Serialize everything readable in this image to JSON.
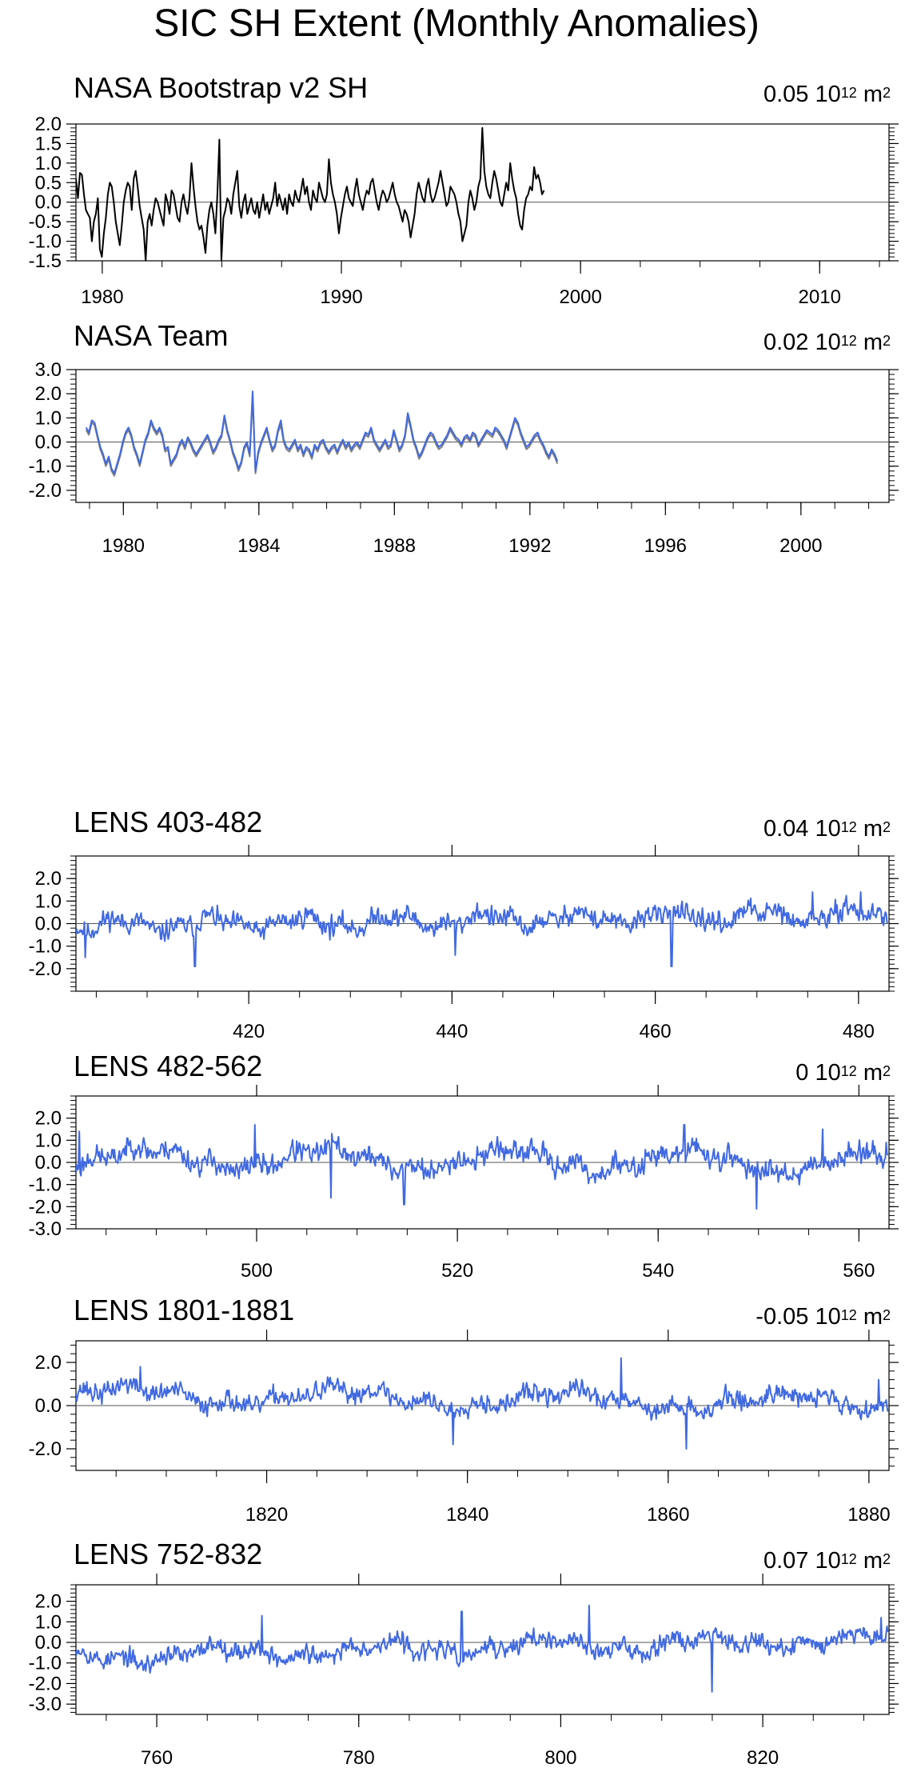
{
  "title": "SIC SH Extent (Monthly Anomalies)",
  "chart_data": [
    {
      "id": "nasa-bootstrap",
      "type": "line",
      "title": "NASA Bootstrap v2 SH",
      "mean_value": "0.05",
      "mean_unit_base": "10",
      "mean_unit_exp": "12",
      "mean_unit_suffix": "m",
      "mean_unit_suffix_exp": "2",
      "xlim": [
        1978.9,
        2012.9
      ],
      "ylim": [
        -1.5,
        2.0
      ],
      "xticks": [
        1980,
        1990,
        2000,
        2010
      ],
      "yticks": [
        -1.5,
        -1.0,
        -0.5,
        0.0,
        0.5,
        1.0,
        1.5,
        2.0
      ],
      "ytick_labels": [
        "-1.5",
        "-1.0",
        "-0.5",
        "0.0",
        "0.5",
        "1.0",
        "1.5",
        "2.0"
      ],
      "series": [
        {
          "color": "#000000",
          "x_start": 1978.9,
          "x_step": 0.0833,
          "values": [
            0.6,
            0.1,
            0.75,
            0.7,
            0.2,
            -0.2,
            -0.3,
            -0.4,
            -1.0,
            -0.5,
            -0.3,
            0.1,
            -1.2,
            -1.4,
            -0.8,
            -0.4,
            0.2,
            0.5,
            0.4,
            0.0,
            -0.5,
            -0.8,
            -1.1,
            -0.6,
            0.0,
            0.3,
            0.5,
            0.4,
            -0.2,
            0.6,
            0.8,
            0.4,
            -0.1,
            -0.4,
            -0.7,
            -1.5,
            -0.5,
            -0.3,
            -0.6,
            -0.2,
            0.1,
            0.0,
            -0.2,
            -0.4,
            -0.6,
            0.2,
            0.0,
            -0.3,
            0.3,
            0.2,
            -0.1,
            -0.4,
            -0.5,
            0.0,
            0.2,
            -0.1,
            -0.3,
            0.1,
            1.0,
            0.4,
            -0.1,
            -0.5,
            -0.7,
            -0.6,
            -0.9,
            -1.3,
            -0.6,
            -0.2,
            0.0,
            -0.3,
            -0.8,
            0.2,
            1.6,
            -1.5,
            -0.4,
            -0.2,
            0.1,
            0.0,
            -0.3,
            0.2,
            0.5,
            0.8,
            -0.1,
            -0.4,
            0.0,
            0.2,
            -0.3,
            -0.1,
            0.1,
            -0.2,
            -0.3,
            0.0,
            -0.4,
            -0.1,
            0.2,
            -0.2,
            0.0,
            -0.3,
            -0.1,
            0.1,
            0.5,
            -0.1,
            0.2,
            0.0,
            -0.2,
            0.1,
            -0.3,
            0.2,
            0.0,
            -0.1,
            0.3,
            0.1,
            0.0,
            0.3,
            0.6,
            0.2,
            0.4,
            0.0,
            -0.2,
            0.3,
            0.1,
            0.0,
            0.5,
            0.3,
            0.1,
            0.0,
            0.2,
            1.1,
            0.5,
            0.2,
            0.0,
            -0.3,
            -0.8,
            -0.4,
            -0.1,
            0.2,
            0.4,
            0.1,
            0.0,
            -0.1,
            0.3,
            0.6,
            0.2,
            0.0,
            -0.2,
            0.1,
            0.3,
            0.2,
            0.5,
            0.6,
            0.3,
            0.0,
            -0.2,
            0.1,
            0.3,
            0.2,
            0.0,
            0.1,
            0.3,
            0.5,
            0.2,
            0.0,
            -0.1,
            -0.3,
            -0.5,
            -0.2,
            -0.3,
            -0.5,
            -0.9,
            -0.6,
            -0.3,
            0.2,
            0.5,
            0.3,
            0.1,
            0.0,
            0.4,
            0.6,
            0.2,
            0.0,
            0.1,
            0.3,
            0.5,
            0.8,
            0.5,
            0.2,
            -0.1,
            0.0,
            0.4,
            0.3,
            0.2,
            0.0,
            -0.3,
            -0.5,
            -1.0,
            -0.8,
            -0.6,
            0.0,
            0.3,
            0.1,
            -0.2,
            0.0,
            0.4,
            0.6,
            1.9,
            0.8,
            0.4,
            0.2,
            0.1,
            0.5,
            0.8,
            0.6,
            0.3,
            0.0,
            -0.1,
            0.2,
            0.5,
            0.3,
            1.0,
            0.6,
            0.3,
            0.1,
            -0.3,
            -0.6,
            -0.7,
            -0.2,
            0.1,
            0.2,
            0.4,
            0.3,
            0.9,
            0.6,
            0.7,
            0.5,
            0.2,
            0.3
          ]
        }
      ]
    },
    {
      "id": "nasa-team",
      "type": "line",
      "title": "NASA Team",
      "mean_value": "0.02",
      "mean_unit_base": "10",
      "mean_unit_exp": "12",
      "mean_unit_suffix": "m",
      "mean_unit_suffix_exp": "2",
      "xlim": [
        1978.6,
        2002.6
      ],
      "ylim": [
        -2.5,
        3.0
      ],
      "xticks": [
        1980,
        1984,
        1988,
        1992,
        1996,
        2000
      ],
      "yticks": [
        -2.0,
        -1.0,
        0.0,
        1.0,
        2.0,
        3.0
      ],
      "ytick_labels": [
        "-2.0",
        "-1.0",
        "0.0",
        "1.0",
        "2.0",
        "3.0"
      ],
      "series": [
        {
          "color": "#808080",
          "x_start": 1978.9,
          "x_step": 0.0833,
          "values": [
            0.5,
            0.3,
            0.8,
            0.7,
            0.2,
            -0.3,
            -0.6,
            -1.0,
            -0.7,
            -1.2,
            -1.4,
            -1.0,
            -0.6,
            -0.1,
            0.3,
            0.5,
            0.2,
            -0.3,
            -0.6,
            -1.0,
            -0.5,
            0.0,
            0.3,
            0.8,
            0.5,
            0.3,
            0.5,
            0.2,
            -0.4,
            -0.3,
            -1.0,
            -0.8,
            -0.6,
            -0.2,
            0.0,
            -0.3,
            0.1,
            -0.1,
            -0.4,
            -0.6,
            -0.4,
            -0.2,
            0.0,
            0.2,
            -0.1,
            -0.5,
            -0.3,
            0.0,
            0.2,
            1.0,
            0.4,
            0.0,
            -0.5,
            -0.8,
            -1.2,
            -0.9,
            -0.3,
            -0.1,
            -0.6,
            1.9,
            -1.3,
            -0.5,
            -0.1,
            0.2,
            0.5,
            0.0,
            -0.4,
            -0.2,
            0.4,
            0.7,
            0.0,
            -0.3,
            -0.4,
            -0.2,
            0.0,
            -0.4,
            -0.2,
            -0.6,
            -0.3,
            -0.4,
            -0.7,
            -0.2,
            -0.4,
            -0.1,
            0.0,
            -0.3,
            -0.5,
            -0.3,
            -0.2,
            -0.5,
            -0.2,
            0.0,
            -0.3,
            -0.1,
            -0.4,
            -0.2,
            -0.1,
            -0.3,
            0.0,
            0.3,
            0.2,
            0.5,
            0.0,
            -0.2,
            -0.4,
            -0.2,
            0.0,
            -0.3,
            -0.2,
            0.4,
            0.0,
            -0.4,
            -0.2,
            0.2,
            1.0,
            0.6,
            0.0,
            -0.3,
            -0.7,
            -0.5,
            -0.2,
            0.1,
            0.3,
            0.2,
            -0.1,
            -0.3,
            -0.2,
            0.0,
            0.2,
            0.5,
            0.3,
            0.1,
            0.0,
            -0.2,
            0.1,
            0.2,
            0.0,
            0.3,
            0.2,
            -0.2,
            0.0,
            0.2,
            0.4,
            0.3,
            0.2,
            0.5,
            0.4,
            0.2,
            0.0,
            -0.3,
            0.1,
            0.5,
            0.9,
            0.7,
            0.3,
            0.0,
            -0.3,
            -0.2,
            0.0,
            0.2,
            0.3,
            0.0,
            -0.2,
            -0.5,
            -0.7,
            -0.4,
            -0.6,
            -0.9
          ]
        },
        {
          "color": "#4169e1",
          "x_start": 1978.9,
          "x_step": 0.0833,
          "values": [
            0.6,
            0.4,
            0.9,
            0.8,
            0.3,
            -0.2,
            -0.5,
            -0.9,
            -0.6,
            -1.1,
            -1.3,
            -0.9,
            -0.5,
            0.0,
            0.4,
            0.6,
            0.3,
            -0.2,
            -0.5,
            -0.9,
            -0.4,
            0.1,
            0.4,
            0.9,
            0.6,
            0.4,
            0.6,
            0.3,
            -0.3,
            -0.2,
            -0.9,
            -0.7,
            -0.5,
            -0.1,
            0.1,
            -0.2,
            0.2,
            0.0,
            -0.3,
            -0.5,
            -0.3,
            -0.1,
            0.1,
            0.3,
            0.0,
            -0.4,
            -0.2,
            0.1,
            0.3,
            1.1,
            0.5,
            0.1,
            -0.4,
            -0.7,
            -1.1,
            -0.8,
            -0.2,
            0.0,
            -0.5,
            2.1,
            -1.2,
            -0.4,
            0.0,
            0.3,
            0.6,
            0.1,
            -0.3,
            -0.1,
            0.5,
            0.9,
            0.1,
            -0.2,
            -0.3,
            -0.1,
            0.1,
            -0.3,
            -0.1,
            -0.5,
            -0.2,
            -0.3,
            -0.6,
            -0.1,
            -0.3,
            0.0,
            0.1,
            -0.2,
            -0.4,
            -0.2,
            -0.1,
            -0.4,
            -0.1,
            0.1,
            -0.2,
            0.0,
            -0.3,
            -0.1,
            0.0,
            -0.2,
            0.1,
            0.4,
            0.3,
            0.6,
            0.1,
            -0.1,
            -0.3,
            -0.1,
            0.1,
            -0.2,
            -0.1,
            0.5,
            0.1,
            -0.3,
            -0.1,
            0.3,
            1.2,
            0.7,
            0.1,
            -0.2,
            -0.6,
            -0.4,
            -0.1,
            0.2,
            0.4,
            0.3,
            0.0,
            -0.2,
            -0.1,
            0.1,
            0.3,
            0.6,
            0.4,
            0.2,
            0.1,
            -0.1,
            0.2,
            0.3,
            0.1,
            0.4,
            0.3,
            -0.1,
            0.1,
            0.3,
            0.5,
            0.4,
            0.3,
            0.6,
            0.5,
            0.3,
            0.1,
            -0.2,
            0.2,
            0.6,
            1.0,
            0.8,
            0.4,
            0.1,
            -0.2,
            -0.1,
            0.1,
            0.3,
            0.4,
            0.1,
            -0.1,
            -0.4,
            -0.6,
            -0.3,
            -0.5,
            -0.8
          ]
        }
      ]
    },
    {
      "id": "lens-403-482",
      "type": "line",
      "title": "LENS 403-482",
      "mean_value": "0.04",
      "mean_unit_base": "10",
      "mean_unit_exp": "12",
      "mean_unit_suffix": "m",
      "mean_unit_suffix_exp": "2",
      "xlim": [
        403,
        483
      ],
      "ylim": [
        -3.0,
        3.0
      ],
      "xticks": [
        420,
        440,
        460,
        480
      ],
      "yticks": [
        -2.0,
        -1.0,
        0.0,
        1.0,
        2.0
      ],
      "ytick_labels": [
        "-2.0",
        "-1.0",
        "0.0",
        "1.0",
        "2.0"
      ],
      "top_axis_ticks": [
        420,
        440,
        460,
        480
      ],
      "series": [
        {
          "color": "#4169e1",
          "x_start": 403,
          "x_step": 0.0833,
          "generator": {
            "seed": 11,
            "noise": 0.45,
            "waves": [
              [
                0.25,
                9.0,
                0.0
              ],
              [
                0.15,
                3.3,
                1.0
              ]
            ],
            "trend": [
              -0.1,
              0.4
            ],
            "spikes": [
              [
                403.9,
                -1.5
              ],
              [
                414.7,
                -1.9
              ],
              [
                440.3,
                -1.4
              ],
              [
                461.6,
                -1.9
              ],
              [
                475.5,
                1.4
              ],
              [
                480.2,
                1.4
              ]
            ]
          }
        }
      ]
    },
    {
      "id": "lens-482-562",
      "type": "line",
      "title": "LENS 482-562",
      "mean_value": "0",
      "mean_unit_base": "10",
      "mean_unit_exp": "12",
      "mean_unit_suffix": "m",
      "mean_unit_suffix_exp": "2",
      "xlim": [
        482,
        563
      ],
      "ylim": [
        -3.0,
        3.0
      ],
      "xticks": [
        500,
        520,
        540,
        560
      ],
      "yticks": [
        -3.0,
        -2.0,
        -1.0,
        0.0,
        1.0,
        2.0
      ],
      "ytick_labels": [
        "-3.0",
        "-2.0",
        "-1.0",
        "0.0",
        "1.0",
        "2.0"
      ],
      "top_axis_ticks": [
        500,
        520,
        540,
        560
      ],
      "series": [
        {
          "color": "#4169e1",
          "x_start": 482,
          "x_step": 0.0833,
          "generator": {
            "seed": 23,
            "noise": 0.5,
            "waves": [
              [
                0.45,
                18.0,
                0.5
              ],
              [
                0.2,
                4.0,
                2.0
              ]
            ],
            "trend": [
              0.2,
              0.0
            ],
            "spikes": [
              [
                482.3,
                1.4
              ],
              [
                499.8,
                1.7
              ],
              [
                507.4,
                -1.6
              ],
              [
                514.7,
                -1.9
              ],
              [
                542.6,
                1.7
              ],
              [
                549.8,
                -2.1
              ],
              [
                556.4,
                1.5
              ],
              [
                562.7,
                0.9
              ]
            ]
          }
        }
      ]
    },
    {
      "id": "lens-1801-1881",
      "type": "line",
      "title": "LENS 1801-1881",
      "mean_value": "-0.05",
      "mean_unit_base": "10",
      "mean_unit_exp": "12",
      "mean_unit_suffix": "m",
      "mean_unit_suffix_exp": "2",
      "xlim": [
        1801,
        1882
      ],
      "ylim": [
        -3.0,
        3.0
      ],
      "xticks": [
        1820,
        1840,
        1860,
        1880
      ],
      "yticks": [
        -2.0,
        0.0,
        2.0
      ],
      "ytick_labels": [
        "-2.0",
        "0.0",
        "2.0"
      ],
      "top_axis_ticks": [
        1820,
        1840,
        1860,
        1880
      ],
      "series": [
        {
          "color": "#4169e1",
          "x_start": 1801,
          "x_step": 0.0833,
          "generator": {
            "seed": 37,
            "noise": 0.45,
            "waves": [
              [
                0.35,
                22.0,
                1.0
              ],
              [
                0.2,
                5.0,
                0.3
              ]
            ],
            "trend": [
              0.5,
              0.1
            ],
            "spikes": [
              [
                1802.1,
                1.1
              ],
              [
                1807.4,
                1.8
              ],
              [
                1838.6,
                -1.8
              ],
              [
                1855.3,
                2.2
              ],
              [
                1861.8,
                -2.0
              ],
              [
                1881.0,
                1.2
              ]
            ]
          }
        }
      ]
    },
    {
      "id": "lens-752-832",
      "type": "line",
      "title": "LENS 752-832",
      "mean_value": "0.07",
      "mean_unit_base": "10",
      "mean_unit_exp": "12",
      "mean_unit_suffix": "m",
      "mean_unit_suffix_exp": "2",
      "xlim": [
        752,
        832.5
      ],
      "ylim": [
        -3.5,
        2.8
      ],
      "xticks": [
        760,
        780,
        800,
        820
      ],
      "yticks": [
        -3.0,
        -2.0,
        -1.0,
        0.0,
        1.0,
        2.0
      ],
      "ytick_labels": [
        "-3.0",
        "-2.0",
        "-1.0",
        "0.0",
        "1.0",
        "2.0"
      ],
      "top_axis_ticks": [
        760,
        780,
        800,
        820
      ],
      "series": [
        {
          "color": "#4169e1",
          "x_start": 752,
          "x_step": 0.0833,
          "generator": {
            "seed": 53,
            "noise": 0.45,
            "waves": [
              [
                0.3,
                16.0,
                2.2
              ],
              [
                0.2,
                4.5,
                0.7
              ]
            ],
            "trend": [
              -0.7,
              0.2
            ],
            "spikes": [
              [
                770.4,
                1.3
              ],
              [
                790.2,
                1.5
              ],
              [
                802.8,
                1.8
              ],
              [
                815.0,
                -2.4
              ],
              [
                831.7,
                1.2
              ]
            ]
          }
        }
      ]
    }
  ]
}
